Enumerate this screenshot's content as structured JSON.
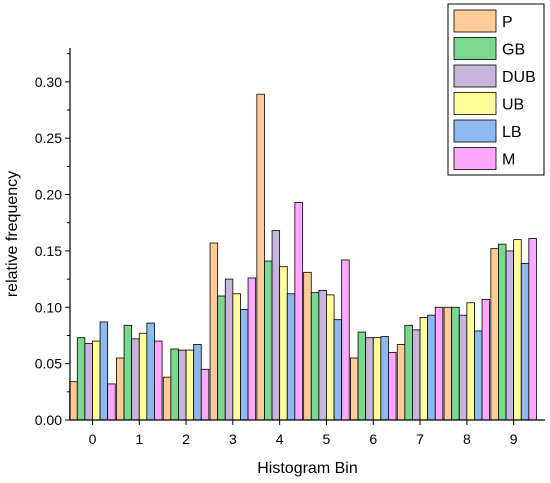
{
  "chart_data": {
    "type": "bar",
    "title": "",
    "xlabel": "Histogram Bin",
    "ylabel": "relative frequency",
    "categories": [
      "0",
      "1",
      "2",
      "3",
      "4",
      "5",
      "6",
      "7",
      "8",
      "9"
    ],
    "ylim": [
      0,
      0.33
    ],
    "yticks": [
      "0.00",
      "0.05",
      "0.10",
      "0.15",
      "0.20",
      "0.25",
      "0.30"
    ],
    "ytick_values": [
      0,
      0.05,
      0.1,
      0.15,
      0.2,
      0.25,
      0.3
    ],
    "grid": false,
    "legend_position": "top-right",
    "series": [
      {
        "name": "P",
        "color": "#FFCC99",
        "values": [
          0.034,
          0.055,
          0.038,
          0.157,
          0.289,
          0.131,
          0.055,
          0.067,
          0.1,
          0.152
        ]
      },
      {
        "name": "GB",
        "color": "#7BD88F",
        "values": [
          0.073,
          0.084,
          0.063,
          0.11,
          0.141,
          0.113,
          0.078,
          0.084,
          0.1,
          0.156
        ]
      },
      {
        "name": "DUB",
        "color": "#C8B4DC",
        "values": [
          0.068,
          0.072,
          0.062,
          0.125,
          0.168,
          0.115,
          0.073,
          0.08,
          0.093,
          0.15
        ]
      },
      {
        "name": "UB",
        "color": "#FFFF99",
        "values": [
          0.07,
          0.077,
          0.062,
          0.112,
          0.136,
          0.111,
          0.073,
          0.091,
          0.104,
          0.16
        ]
      },
      {
        "name": "LB",
        "color": "#8DB9F0",
        "values": [
          0.087,
          0.086,
          0.067,
          0.098,
          0.112,
          0.089,
          0.074,
          0.093,
          0.079,
          0.139
        ]
      },
      {
        "name": "M",
        "color": "#FFA8FF",
        "values": [
          0.032,
          0.07,
          0.045,
          0.126,
          0.193,
          0.142,
          0.06,
          0.1,
          0.107,
          0.161
        ]
      }
    ]
  }
}
